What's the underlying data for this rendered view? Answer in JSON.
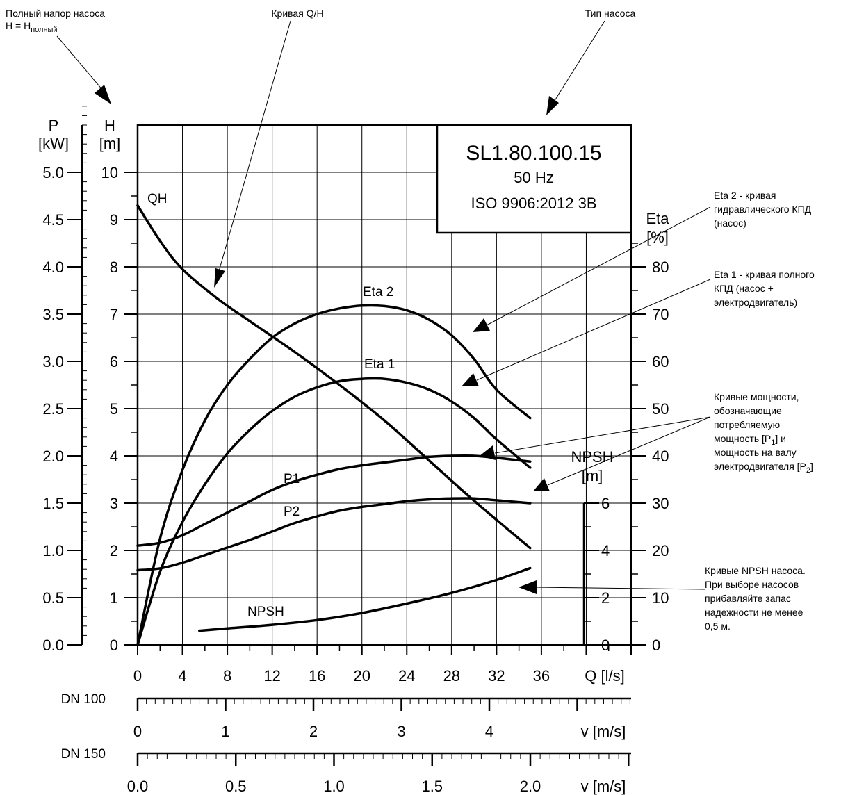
{
  "annotations": {
    "total_head_line1": "Полный напор насоса",
    "total_head_line2_prefix": "H = H",
    "total_head_line2_sub": "полный",
    "qh_curve": "Кривая Q/H",
    "pump_type": "Тип насоса",
    "eta2": [
      "Eta 2 - кривая",
      "гидравлического КПД",
      "(насос)"
    ],
    "eta1": [
      "Eta 1 - кривая полного",
      "КПД (насос +",
      "электродвигатель)"
    ],
    "power": {
      "lines": [
        "Кривые мощности,",
        "обозначающие",
        "потребляемую"
      ],
      "line4_prefix": "мощность [P",
      "line4_sub": "1",
      "line4_suffix": "] и",
      "line5": "мощность на валу",
      "line6_prefix": "электродвигателя [P",
      "line6_sub": "2",
      "line6_suffix": "]"
    },
    "npsh": [
      "Кривые NPSH насоса.",
      "При выборе насосов",
      "прибавляйте запас",
      "надежности не менее",
      "0,5 м."
    ]
  },
  "pump_box": {
    "model": "SL1.80.100.15",
    "frequency": "50 Hz",
    "standard": "ISO 9906:2012 3B"
  },
  "axes": {
    "p_title": "P",
    "p_unit": "[kW]",
    "h_title": "H",
    "h_unit": "[m]",
    "eta_title": "Eta",
    "eta_unit": "[%]",
    "npsh_title": "NPSH",
    "npsh_unit": "[m]",
    "q_title": "Q [l/s]",
    "dn100_label": "DN 100",
    "dn150_label": "DN 150",
    "v_title": "v [m/s]"
  },
  "chart_data": {
    "type": "line",
    "x_label": "Q [l/s]",
    "xlim": [
      0,
      44
    ],
    "x_ticks": [
      "0",
      "4",
      "8",
      "12",
      "16",
      "20",
      "24",
      "28",
      "32",
      "36"
    ],
    "axes": {
      "H": {
        "range": [
          0,
          10
        ],
        "ticks": [
          "0",
          "1",
          "2",
          "3",
          "4",
          "5",
          "6",
          "7",
          "8",
          "9",
          "10"
        ]
      },
      "P": {
        "range": [
          0,
          5
        ],
        "ticks": [
          "0.0",
          "0.5",
          "1.0",
          "1.5",
          "2.0",
          "2.5",
          "3.0",
          "3.5",
          "4.0",
          "4.5",
          "5.0"
        ]
      },
      "Eta": {
        "range": [
          0,
          100
        ],
        "ticks": [
          "0",
          "10",
          "20",
          "30",
          "40",
          "50",
          "60",
          "70",
          "80"
        ]
      },
      "NPSH": {
        "range": [
          0,
          6
        ],
        "ticks": [
          "0",
          "2",
          "4",
          "6"
        ]
      },
      "DN100_v": {
        "ticks": [
          "0",
          "1",
          "2",
          "3",
          "4"
        ]
      },
      "DN150_v": {
        "ticks": [
          "0.0",
          "0.5",
          "1.0",
          "1.5",
          "2.0"
        ]
      }
    },
    "series": [
      {
        "name": "QH",
        "axis": "H",
        "x": [
          0,
          2,
          4,
          7,
          10,
          14,
          18,
          22,
          26,
          30,
          35
        ],
        "y": [
          9.3,
          8.55,
          7.95,
          7.35,
          6.85,
          6.2,
          5.5,
          4.75,
          3.9,
          3.05,
          2.05
        ]
      },
      {
        "name": "Eta 2",
        "axis": "Eta",
        "x": [
          0,
          2,
          4,
          6,
          8,
          10,
          12,
          14,
          16,
          18,
          20,
          22,
          24,
          26,
          28,
          30,
          32,
          35
        ],
        "y": [
          0,
          22.5,
          37,
          47.5,
          55,
          60.5,
          65,
          68,
          70,
          71.2,
          71.8,
          71.7,
          70.8,
          68.8,
          65.5,
          60.5,
          54,
          48
        ]
      },
      {
        "name": "Eta 1",
        "axis": "Eta",
        "x": [
          0,
          2,
          4,
          6,
          8,
          10,
          12,
          14,
          16,
          18,
          20,
          22,
          24,
          26,
          28,
          30,
          32,
          35
        ],
        "y": [
          0,
          15.5,
          26,
          34,
          40.5,
          45.5,
          49.5,
          52.5,
          54.5,
          55.8,
          56.3,
          56.3,
          55.5,
          54,
          51.5,
          48,
          43.5,
          37.5
        ]
      },
      {
        "name": "P1",
        "axis": "P",
        "x": [
          0,
          2,
          4,
          6,
          8,
          10,
          12,
          14,
          16,
          18,
          20,
          22,
          24,
          26,
          28,
          30,
          32,
          35
        ],
        "y": [
          1.05,
          1.08,
          1.16,
          1.28,
          1.4,
          1.52,
          1.64,
          1.73,
          1.8,
          1.86,
          1.9,
          1.93,
          1.96,
          1.99,
          2.0,
          2.0,
          1.98,
          1.94
        ]
      },
      {
        "name": "P2",
        "axis": "P",
        "x": [
          0,
          2,
          4,
          6,
          8,
          10,
          12,
          14,
          16,
          18,
          20,
          22,
          24,
          26,
          28,
          30,
          32,
          35
        ],
        "y": [
          0.79,
          0.81,
          0.87,
          0.95,
          1.03,
          1.11,
          1.2,
          1.29,
          1.36,
          1.42,
          1.46,
          1.49,
          1.52,
          1.54,
          1.55,
          1.55,
          1.53,
          1.5
        ]
      },
      {
        "name": "NPSH",
        "axis": "NPSH",
        "x": [
          5.5,
          8,
          12,
          16,
          20,
          24,
          28,
          32,
          35
        ],
        "y": [
          0.6,
          0.7,
          0.85,
          1.05,
          1.35,
          1.75,
          2.2,
          2.75,
          3.25
        ]
      }
    ]
  }
}
